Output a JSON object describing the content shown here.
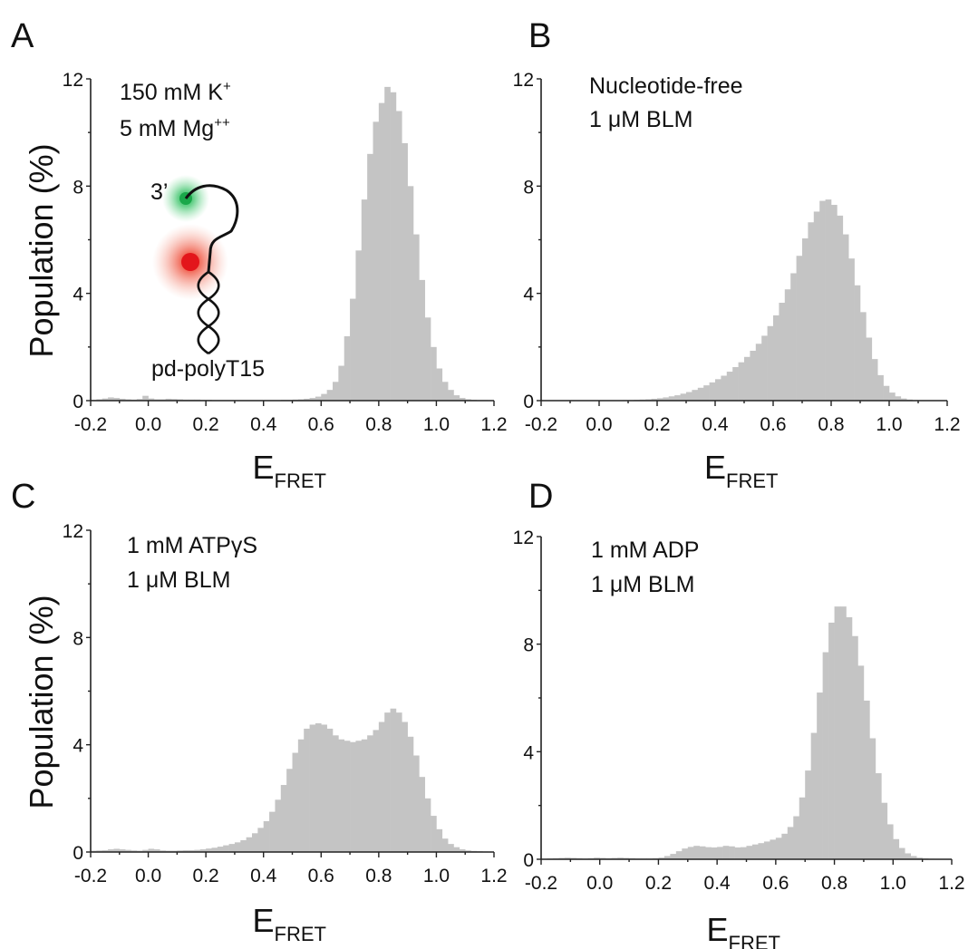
{
  "chart_data": [
    {
      "type": "bar",
      "panel": "A",
      "notes": [
        "150 mM K",
        "5 mM Mg"
      ],
      "note_sup": [
        "+",
        "++"
      ],
      "ylabel": "Population (%)",
      "xlabel": "E",
      "xlabel_sub": "FRET",
      "schematic_labels": {
        "end": "3’",
        "construct": "pd-polyT15"
      },
      "ylim": [
        0,
        12
      ],
      "yticks": [
        "0",
        "4",
        "8",
        "12"
      ],
      "xlim": [
        -0.2,
        1.2
      ],
      "xticks": [
        "-0.2",
        "0.0",
        "0.2",
        "0.4",
        "0.6",
        "0.8",
        "1.0",
        "1.2"
      ],
      "bin_width": 0.02,
      "x": [
        -0.19,
        -0.17,
        -0.15,
        -0.13,
        -0.11,
        -0.09,
        -0.07,
        -0.05,
        -0.03,
        -0.01,
        0.01,
        0.03,
        0.05,
        0.07,
        0.09,
        0.11,
        0.13,
        0.15,
        0.17,
        0.19,
        0.21,
        0.23,
        0.25,
        0.27,
        0.29,
        0.31,
        0.33,
        0.35,
        0.37,
        0.39,
        0.41,
        0.43,
        0.45,
        0.47,
        0.49,
        0.51,
        0.53,
        0.55,
        0.57,
        0.59,
        0.61,
        0.63,
        0.65,
        0.67,
        0.69,
        0.71,
        0.73,
        0.75,
        0.77,
        0.79,
        0.81,
        0.83,
        0.85,
        0.87,
        0.89,
        0.91,
        0.93,
        0.95,
        0.97,
        0.99,
        1.01,
        1.03,
        1.05,
        1.07,
        1.09,
        1.11,
        1.13,
        1.15,
        1.17,
        1.19
      ],
      "values": [
        0.03,
        0.05,
        0.08,
        0.12,
        0.1,
        0.07,
        0.05,
        0.04,
        0.06,
        0.18,
        0.08,
        0.05,
        0.05,
        0.07,
        0.06,
        0.05,
        0.04,
        0.04,
        0.04,
        0.03,
        0.03,
        0.02,
        0.02,
        0.02,
        0.02,
        0.02,
        0.02,
        0.02,
        0.02,
        0.02,
        0.02,
        0.02,
        0.02,
        0.03,
        0.03,
        0.04,
        0.05,
        0.07,
        0.1,
        0.15,
        0.25,
        0.4,
        0.7,
        1.3,
        2.4,
        3.8,
        5.6,
        7.5,
        9.2,
        10.4,
        11.1,
        11.7,
        11.5,
        10.8,
        9.6,
        8.0,
        6.2,
        4.5,
        3.1,
        2.0,
        1.2,
        0.7,
        0.4,
        0.2,
        0.1,
        0.05,
        0.03,
        0.02,
        0.02,
        0.01
      ]
    },
    {
      "type": "bar",
      "panel": "B",
      "notes": [
        "Nucleotide-free",
        "1 μM BLM"
      ],
      "note_sup": [
        "",
        ""
      ],
      "ylabel": "",
      "xlabel": "E",
      "xlabel_sub": "FRET",
      "ylim": [
        0,
        12
      ],
      "yticks": [
        "0",
        "4",
        "8",
        "12"
      ],
      "xlim": [
        -0.2,
        1.2
      ],
      "xticks": [
        "-0.2",
        "0.0",
        "0.2",
        "0.4",
        "0.6",
        "0.8",
        "1.0",
        "1.2"
      ],
      "bin_width": 0.02,
      "x": [
        -0.19,
        -0.17,
        -0.15,
        -0.13,
        -0.11,
        -0.09,
        -0.07,
        -0.05,
        -0.03,
        -0.01,
        0.01,
        0.03,
        0.05,
        0.07,
        0.09,
        0.11,
        0.13,
        0.15,
        0.17,
        0.19,
        0.21,
        0.23,
        0.25,
        0.27,
        0.29,
        0.31,
        0.33,
        0.35,
        0.37,
        0.39,
        0.41,
        0.43,
        0.45,
        0.47,
        0.49,
        0.51,
        0.53,
        0.55,
        0.57,
        0.59,
        0.61,
        0.63,
        0.65,
        0.67,
        0.69,
        0.71,
        0.73,
        0.75,
        0.77,
        0.79,
        0.81,
        0.83,
        0.85,
        0.87,
        0.89,
        0.91,
        0.93,
        0.95,
        0.97,
        0.99,
        1.01,
        1.03,
        1.05,
        1.07,
        1.09,
        1.11,
        1.13,
        1.15,
        1.17,
        1.19
      ],
      "values": [
        0.01,
        0.01,
        0.01,
        0.01,
        0.01,
        0.01,
        0.01,
        0.01,
        0.01,
        0.01,
        0.01,
        0.01,
        0.01,
        0.01,
        0.02,
        0.02,
        0.03,
        0.04,
        0.05,
        0.07,
        0.09,
        0.12,
        0.16,
        0.2,
        0.26,
        0.32,
        0.4,
        0.48,
        0.57,
        0.68,
        0.8,
        0.93,
        1.08,
        1.25,
        1.43,
        1.63,
        1.86,
        2.12,
        2.42,
        2.78,
        3.18,
        3.65,
        4.15,
        4.75,
        5.4,
        6.05,
        6.65,
        7.05,
        7.45,
        7.5,
        7.3,
        6.9,
        6.2,
        5.3,
        4.3,
        3.3,
        2.35,
        1.55,
        0.95,
        0.55,
        0.3,
        0.16,
        0.08,
        0.04,
        0.02,
        0.01,
        0.01,
        0.01,
        0.01,
        0.01
      ]
    },
    {
      "type": "bar",
      "panel": "C",
      "notes": [
        "1 mM ATPγS",
        "1 μM BLM"
      ],
      "note_sup": [
        "",
        ""
      ],
      "ylabel": "Population (%)",
      "xlabel": "E",
      "xlabel_sub": "FRET",
      "ylim": [
        0,
        12
      ],
      "yticks": [
        "0",
        "4",
        "8",
        "12"
      ],
      "xlim": [
        -0.2,
        1.2
      ],
      "xticks": [
        "-0.2",
        "0.0",
        "0.2",
        "0.4",
        "0.6",
        "0.8",
        "1.0",
        "1.2"
      ],
      "bin_width": 0.02,
      "x": [
        -0.19,
        -0.17,
        -0.15,
        -0.13,
        -0.11,
        -0.09,
        -0.07,
        -0.05,
        -0.03,
        -0.01,
        0.01,
        0.03,
        0.05,
        0.07,
        0.09,
        0.11,
        0.13,
        0.15,
        0.17,
        0.19,
        0.21,
        0.23,
        0.25,
        0.27,
        0.29,
        0.31,
        0.33,
        0.35,
        0.37,
        0.39,
        0.41,
        0.43,
        0.45,
        0.47,
        0.49,
        0.51,
        0.53,
        0.55,
        0.57,
        0.59,
        0.61,
        0.63,
        0.65,
        0.67,
        0.69,
        0.71,
        0.73,
        0.75,
        0.77,
        0.79,
        0.81,
        0.83,
        0.85,
        0.87,
        0.89,
        0.91,
        0.93,
        0.95,
        0.97,
        0.99,
        1.01,
        1.03,
        1.05,
        1.07,
        1.09,
        1.11,
        1.13,
        1.15,
        1.17,
        1.19
      ],
      "values": [
        0.05,
        0.06,
        0.07,
        0.1,
        0.12,
        0.1,
        0.08,
        0.06,
        0.05,
        0.08,
        0.12,
        0.1,
        0.06,
        0.05,
        0.05,
        0.06,
        0.07,
        0.07,
        0.08,
        0.1,
        0.13,
        0.16,
        0.2,
        0.25,
        0.3,
        0.36,
        0.44,
        0.55,
        0.7,
        0.9,
        1.15,
        1.5,
        1.95,
        2.5,
        3.1,
        3.7,
        4.2,
        4.6,
        4.75,
        4.8,
        4.75,
        4.6,
        4.35,
        4.2,
        4.15,
        4.1,
        4.15,
        4.2,
        4.35,
        4.55,
        4.85,
        5.2,
        5.35,
        5.2,
        4.85,
        4.3,
        3.6,
        2.8,
        2.0,
        1.35,
        0.85,
        0.5,
        0.3,
        0.18,
        0.1,
        0.06,
        0.04,
        0.03,
        0.02,
        0.01
      ]
    },
    {
      "type": "bar",
      "panel": "D",
      "notes": [
        "1 mM ADP",
        "1 μM BLM"
      ],
      "note_sup": [
        "",
        ""
      ],
      "ylabel": "",
      "xlabel": "E",
      "xlabel_sub": "FRET",
      "ylim": [
        0,
        12
      ],
      "yticks": [
        "0",
        "4",
        "8",
        "12"
      ],
      "xlim": [
        -0.2,
        1.2
      ],
      "xticks": [
        "-0.2",
        "0.0",
        "0.2",
        "0.4",
        "0.6",
        "0.8",
        "1.0",
        "1.2"
      ],
      "bin_width": 0.02,
      "x": [
        -0.19,
        -0.17,
        -0.15,
        -0.13,
        -0.11,
        -0.09,
        -0.07,
        -0.05,
        -0.03,
        -0.01,
        0.01,
        0.03,
        0.05,
        0.07,
        0.09,
        0.11,
        0.13,
        0.15,
        0.17,
        0.19,
        0.21,
        0.23,
        0.25,
        0.27,
        0.29,
        0.31,
        0.33,
        0.35,
        0.37,
        0.39,
        0.41,
        0.43,
        0.45,
        0.47,
        0.49,
        0.51,
        0.53,
        0.55,
        0.57,
        0.59,
        0.61,
        0.63,
        0.65,
        0.67,
        0.69,
        0.71,
        0.73,
        0.75,
        0.77,
        0.79,
        0.81,
        0.83,
        0.85,
        0.87,
        0.89,
        0.91,
        0.93,
        0.95,
        0.97,
        0.99,
        1.01,
        1.03,
        1.05,
        1.07,
        1.09,
        1.11,
        1.13,
        1.15,
        1.17,
        1.19
      ],
      "values": [
        0.02,
        0.03,
        0.04,
        0.05,
        0.06,
        0.05,
        0.04,
        0.03,
        0.04,
        0.06,
        0.05,
        0.04,
        0.05,
        0.06,
        0.05,
        0.04,
        0.03,
        0.03,
        0.03,
        0.04,
        0.06,
        0.12,
        0.2,
        0.3,
        0.4,
        0.46,
        0.5,
        0.48,
        0.45,
        0.44,
        0.46,
        0.5,
        0.48,
        0.44,
        0.45,
        0.5,
        0.55,
        0.6,
        0.66,
        0.73,
        0.8,
        0.95,
        1.2,
        1.6,
        2.3,
        3.3,
        4.7,
        6.2,
        7.7,
        8.8,
        9.4,
        9.4,
        9.0,
        8.3,
        7.2,
        5.9,
        4.5,
        3.2,
        2.1,
        1.3,
        0.75,
        0.42,
        0.22,
        0.12,
        0.06,
        0.03,
        0.02,
        0.01,
        0.01,
        0.01
      ]
    }
  ]
}
